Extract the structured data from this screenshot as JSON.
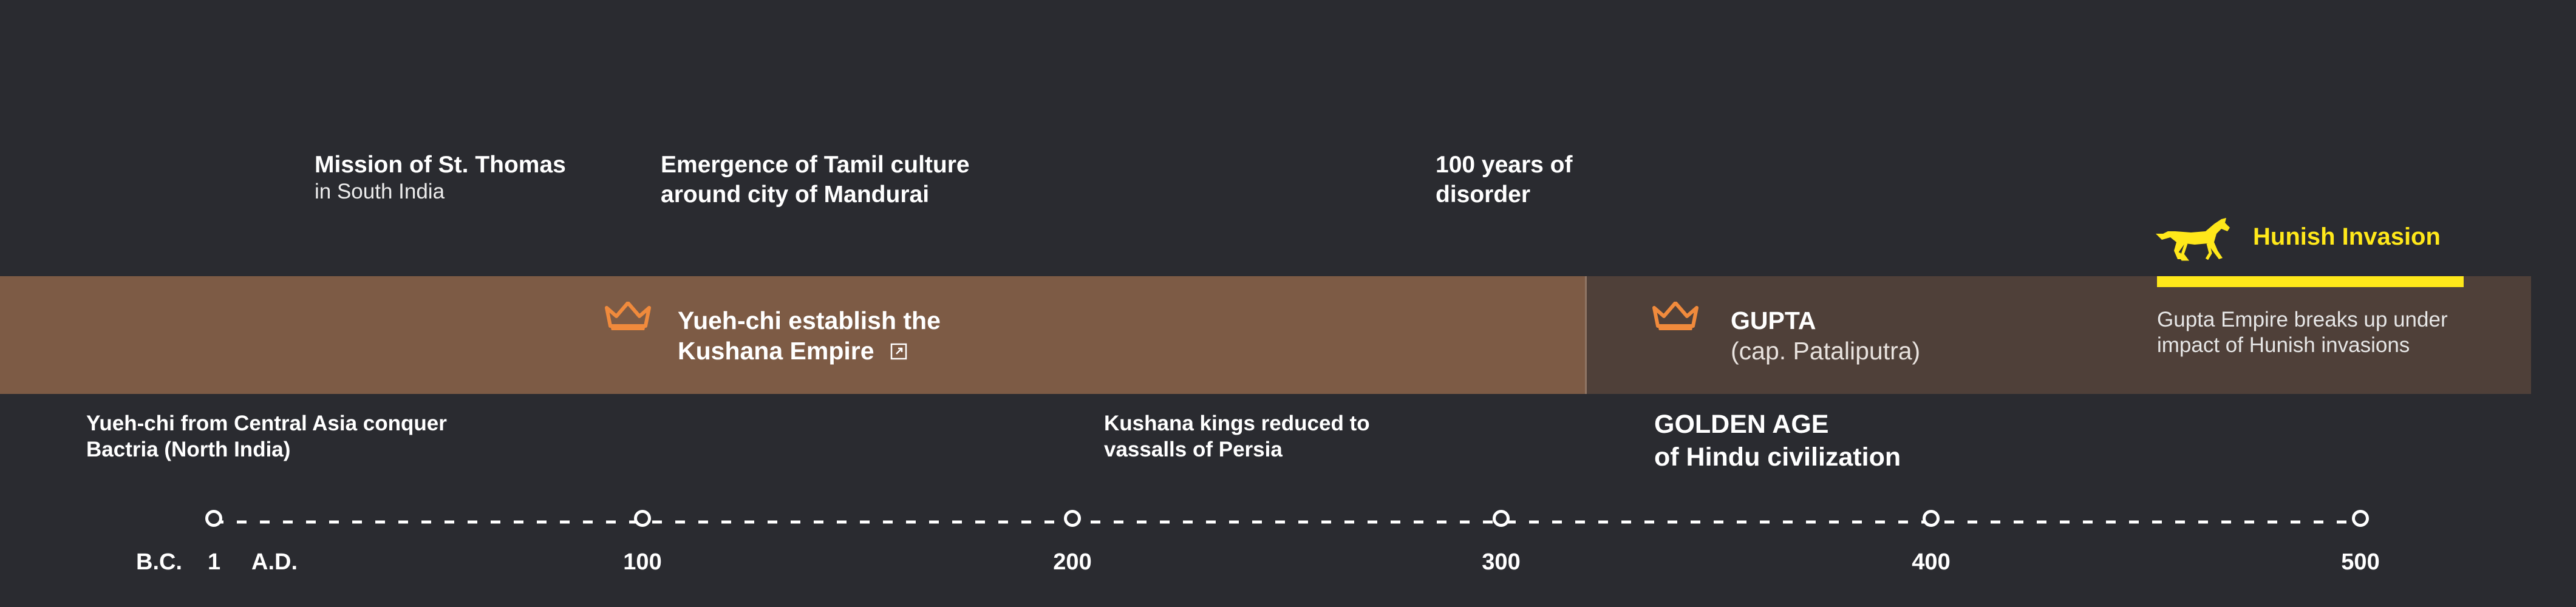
{
  "top_events": {
    "st_thomas": {
      "title": "Mission of St. Thomas",
      "subtitle": "in South India"
    },
    "tamil": {
      "line1": "Emergence of Tamil culture",
      "line2": "around city of Mandurai"
    },
    "disorder": {
      "line1": "100 years of",
      "line2": "disorder"
    }
  },
  "bands": {
    "kushana": {
      "line1": "Yueh-chi establish the",
      "line2": "Kushana Empire",
      "link_icon": "external-link-icon",
      "icon": "crown-icon"
    },
    "gupta": {
      "title": "GUPTA",
      "subtitle": "(cap. Pataliputra)",
      "icon": "crown-icon"
    }
  },
  "hunish": {
    "label": "Hunish Invasion",
    "icon": "horse-icon",
    "desc_line1": "Gupta Empire breaks up under",
    "desc_line2": "impact of Hunish invasions"
  },
  "below_events": {
    "yuehchi": {
      "line1": "Yueh-chi from Central Asia conquer",
      "line2": "Bactria (North India)"
    },
    "vassals": {
      "line1": "Kushana kings reduced to",
      "line2": "vassalls of Persia"
    },
    "golden": {
      "line1": "GOLDEN AGE",
      "line2": "of Hindu civilization"
    }
  },
  "axis": {
    "bc": "B.C.",
    "one": "1",
    "ad": "A.D.",
    "ticks": [
      "100",
      "200",
      "300",
      "400",
      "500"
    ]
  },
  "colors": {
    "background": "#2a2b30",
    "kushana_band": "#7d5b45",
    "gupta_band": "#4f4039",
    "crown": "#f08a3c",
    "hunish": "#ffe81a"
  }
}
